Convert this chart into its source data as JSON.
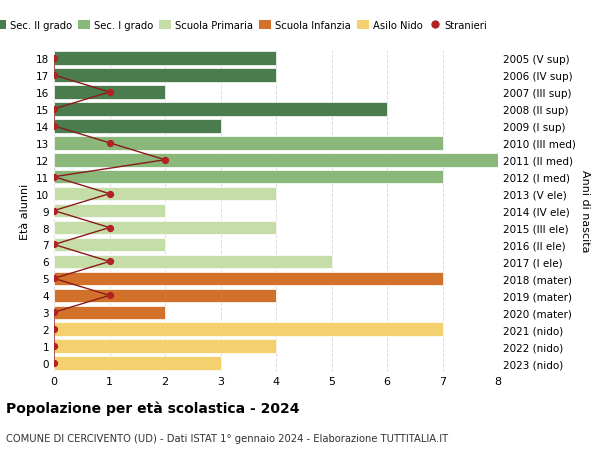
{
  "ages": [
    0,
    1,
    2,
    3,
    4,
    5,
    6,
    7,
    8,
    9,
    10,
    11,
    12,
    13,
    14,
    15,
    16,
    17,
    18
  ],
  "years": [
    "2023 (nido)",
    "2022 (nido)",
    "2021 (nido)",
    "2020 (mater)",
    "2019 (mater)",
    "2018 (mater)",
    "2017 (I ele)",
    "2016 (II ele)",
    "2015 (III ele)",
    "2014 (IV ele)",
    "2013 (V ele)",
    "2012 (I med)",
    "2011 (II med)",
    "2010 (III med)",
    "2009 (I sup)",
    "2008 (II sup)",
    "2007 (III sup)",
    "2006 (IV sup)",
    "2005 (V sup)"
  ],
  "bar_values": [
    3,
    4,
    7,
    2,
    4,
    7,
    5,
    2,
    4,
    2,
    4,
    7,
    8,
    7,
    3,
    6,
    2,
    4,
    4
  ],
  "bar_colors": [
    "#f5d06e",
    "#f5d06e",
    "#f5d06e",
    "#d2722a",
    "#d2722a",
    "#d2722a",
    "#c5dea8",
    "#c5dea8",
    "#c5dea8",
    "#c5dea8",
    "#c5dea8",
    "#8ab87a",
    "#8ab87a",
    "#8ab87a",
    "#4a7c4e",
    "#4a7c4e",
    "#4a7c4e",
    "#4a7c4e",
    "#4a7c4e"
  ],
  "stranieri": [
    0,
    0,
    0,
    0,
    1,
    0,
    1,
    0,
    1,
    0,
    1,
    0,
    2,
    1,
    0,
    0,
    1,
    0,
    0
  ],
  "legend_labels": [
    "Sec. II grado",
    "Sec. I grado",
    "Scuola Primaria",
    "Scuola Infanzia",
    "Asilo Nido",
    "Stranieri"
  ],
  "legend_colors": [
    "#4a7c4e",
    "#8ab87a",
    "#c5dea8",
    "#d2722a",
    "#f5d06e",
    "#b22222"
  ],
  "title1": "Popolazione per età scolastica - 2024",
  "title2": "COMUNE DI CERCIVENTO (UD) - Dati ISTAT 1° gennaio 2024 - Elaborazione TUTTITALIA.IT",
  "ylabel_left": "Età alunni",
  "ylabel_right": "Anni di nascita",
  "xlim": [
    0,
    8
  ],
  "ylim": [
    -0.5,
    18.5
  ],
  "bg_color": "#ffffff",
  "grid_color": "#dddddd"
}
